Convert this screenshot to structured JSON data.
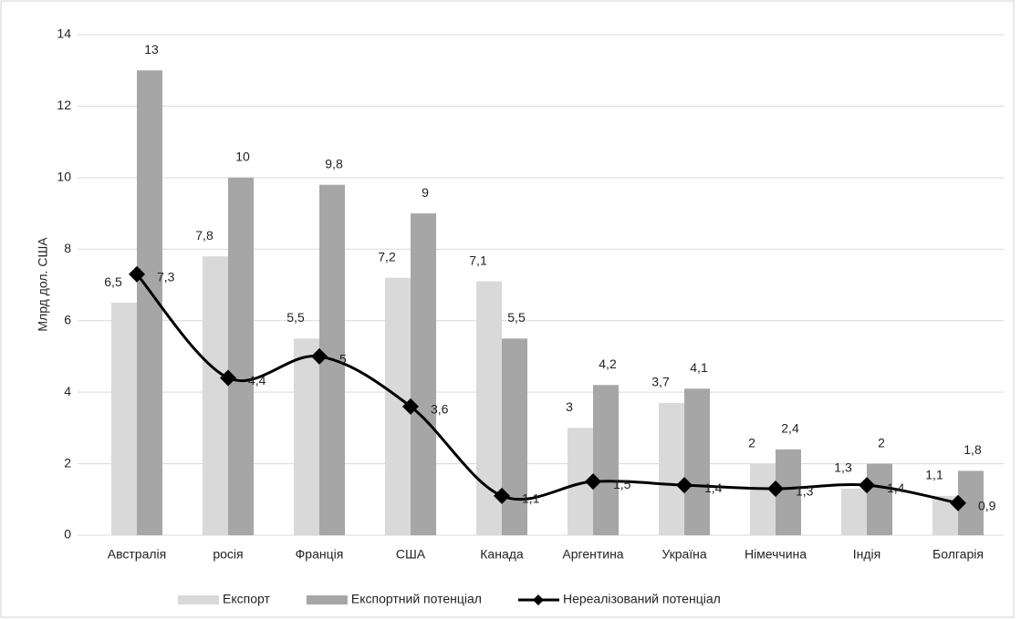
{
  "chart_data": {
    "type": "bar-line",
    "ylabel": "Млрд  дол. США",
    "categories": [
      "Австралія",
      "росія",
      "Франція",
      "США",
      "Канада",
      "Аргентина",
      "Україна",
      "Німеччина",
      "Індія",
      "Болгарія"
    ],
    "series": [
      {
        "name": "Експорт",
        "type": "bar",
        "color": "#d9d9d9",
        "values": [
          6.5,
          7.8,
          5.5,
          7.2,
          7.1,
          3,
          3.7,
          2,
          1.3,
          1.1
        ],
        "value_labels": [
          "6,5",
          "7,8",
          "5,5",
          "7,2",
          "7,1",
          "3",
          "3,7",
          "2",
          "1,3",
          "1,1"
        ]
      },
      {
        "name": "Експортний потенціал",
        "type": "bar",
        "color": "#a6a6a6",
        "values": [
          13,
          10,
          9.8,
          9,
          5.5,
          4.2,
          4.1,
          2.4,
          2,
          1.8
        ],
        "value_labels": [
          "13",
          "10",
          "9,8",
          "9",
          "5,5",
          "4,2",
          "4,1",
          "2,4",
          "2",
          "1,8"
        ]
      },
      {
        "name": "Нереалізований потенціал",
        "type": "line",
        "color": "#000000",
        "values": [
          7.3,
          4.4,
          5,
          3.6,
          1.1,
          1.5,
          1.4,
          1.3,
          1.4,
          0.9
        ],
        "value_labels": [
          "7,3",
          "4,4",
          "5",
          "3,6",
          "1,1",
          "1,5",
          "1,4",
          "1,3",
          "1,4",
          "0,9"
        ]
      }
    ],
    "ylim": [
      0,
      14
    ],
    "yticks": [
      0,
      2,
      4,
      6,
      8,
      10,
      12,
      14
    ],
    "grid": true,
    "legend": "bottom"
  }
}
